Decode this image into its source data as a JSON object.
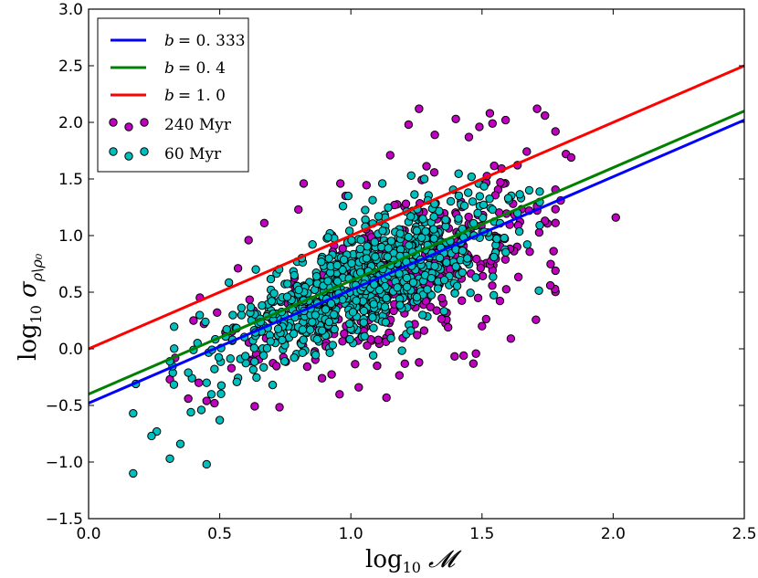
{
  "chart_data": {
    "type": "scatter",
    "title": "",
    "xlabel": "log",
    "xlabel_sub": "10",
    "xlabel_symbol": "𝓜",
    "ylabel": "log",
    "ylabel_sub": "10",
    "ylabel_symbol": "σ",
    "ylabel_symbol_sub": "ρ\\ρ₀",
    "xlim": [
      0.0,
      2.5
    ],
    "ylim": [
      -1.5,
      3.0
    ],
    "xticks": [
      "0.0",
      "0.5",
      "1.0",
      "1.5",
      "2.0",
      "2.5"
    ],
    "yticks": [
      "−1.5",
      "−1.0",
      "−0.5",
      "0.0",
      "0.5",
      "1.0",
      "1.5",
      "2.0",
      "2.5",
      "3.0"
    ],
    "xtick_values": [
      0.0,
      0.5,
      1.0,
      1.5,
      2.0,
      2.5
    ],
    "ytick_values": [
      -1.5,
      -1.0,
      -0.5,
      0.0,
      0.5,
      1.0,
      1.5,
      2.0,
      2.5,
      3.0
    ],
    "grid": false,
    "legend_position": "top-left",
    "lines": [
      {
        "name": "b = 0.333",
        "label_b": "b",
        "label_val": "= 0. 333",
        "color": "#0000ff",
        "slope": 1.0,
        "intercept": -0.48
      },
      {
        "name": "b = 0.4",
        "label_b": "b",
        "label_val": "= 0. 4",
        "color": "#008000",
        "slope": 1.0,
        "intercept": -0.4
      },
      {
        "name": "b = 1.0",
        "label_b": "b",
        "label_val": "= 1. 0",
        "color": "#ff0000",
        "slope": 1.0,
        "intercept": 0.0
      }
    ],
    "series": [
      {
        "name": "240 Myr",
        "label": "240 Myr",
        "color": "#bf00bf",
        "outliers": [
          [
            1.26,
            2.12
          ],
          [
            1.53,
            2.08
          ],
          [
            1.71,
            2.12
          ],
          [
            1.4,
            2.03
          ],
          [
            1.59,
            2.02
          ],
          [
            1.54,
            1.99
          ],
          [
            1.49,
            1.96
          ],
          [
            1.22,
            1.98
          ],
          [
            1.74,
            2.06
          ],
          [
            2.01,
            1.16
          ],
          [
            1.82,
            1.72
          ],
          [
            1.84,
            1.69
          ],
          [
            1.45,
            1.87
          ],
          [
            1.32,
            1.89
          ],
          [
            1.15,
            1.71
          ],
          [
            0.96,
            1.46
          ],
          [
            0.98,
            1.35
          ],
          [
            0.8,
            1.23
          ],
          [
            0.82,
            1.46
          ],
          [
            0.67,
            1.11
          ],
          [
            0.61,
            0.96
          ],
          [
            0.44,
            0.22
          ],
          [
            0.4,
            0.25
          ],
          [
            0.49,
            0.32
          ],
          [
            0.33,
            -0.08
          ],
          [
            0.42,
            -0.3
          ],
          [
            0.38,
            -0.44
          ],
          [
            0.31,
            -0.27
          ],
          [
            1.5,
            0.2
          ],
          [
            1.43,
            -0.06
          ],
          [
            1.61,
            0.09
          ],
          [
            1.26,
            -0.12
          ],
          [
            1.03,
            -0.34
          ],
          [
            0.89,
            -0.26
          ],
          [
            1.1,
            -0.15
          ],
          [
            0.45,
            -0.46
          ],
          [
            0.48,
            -0.48
          ],
          [
            1.8,
            1.31
          ],
          [
            1.74,
            1.13
          ],
          [
            1.57,
            1.47
          ]
        ],
        "cloud": {
          "n": 380,
          "x_mean": 1.22,
          "x_sd": 0.26,
          "intercept": -0.58,
          "slope": 1.0,
          "resid_sd": 0.34,
          "x_min": 0.36,
          "x_max": 1.78,
          "seed": 17
        }
      },
      {
        "name": "60 Myr",
        "label": "60 Myr",
        "color": "#00bfbf",
        "outliers": [
          [
            0.17,
            -1.1
          ],
          [
            0.45,
            -1.02
          ],
          [
            0.26,
            -0.73
          ],
          [
            0.24,
            -0.77
          ],
          [
            0.31,
            -0.97
          ],
          [
            0.35,
            -0.84
          ],
          [
            0.17,
            -0.57
          ],
          [
            0.18,
            -0.31
          ],
          [
            0.5,
            -0.63
          ],
          [
            0.39,
            -0.56
          ],
          [
            0.43,
            -0.54
          ],
          [
            0.38,
            -0.21
          ],
          [
            0.45,
            -0.3
          ],
          [
            0.31,
            -0.11
          ],
          [
            0.4,
            -0.01
          ],
          [
            1.12,
            1.46
          ],
          [
            1.28,
            1.5
          ],
          [
            0.99,
            1.35
          ],
          [
            0.97,
            1.26
          ],
          [
            1.46,
            1.52
          ],
          [
            1.54,
            1.23
          ],
          [
            1.23,
            1.53
          ],
          [
            1.6,
            1.33
          ],
          [
            1.68,
            1.4
          ]
        ],
        "cloud": {
          "n": 760,
          "x_mean": 1.05,
          "x_sd": 0.25,
          "intercept": -0.46,
          "slope": 1.0,
          "resid_sd": 0.24,
          "x_min": 0.32,
          "x_max": 1.72,
          "seed": 5
        }
      }
    ]
  }
}
